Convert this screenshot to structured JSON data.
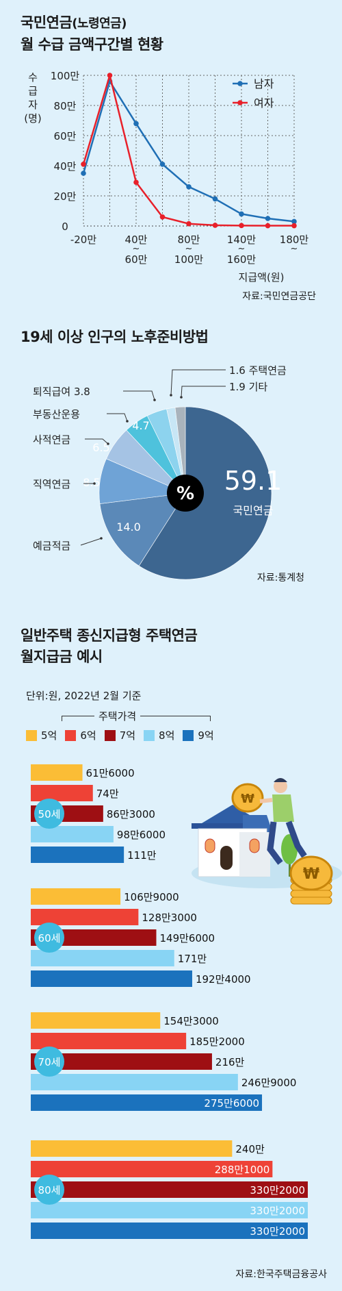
{
  "section1": {
    "title_line1_main": "국민연금",
    "title_line1_paren": "(노령연금)",
    "title_line2": "월 수급 금액구간별 현황",
    "source": "자료:국민연금공단"
  },
  "section2": {
    "title": "19세 이상 인구의 노후준비방법",
    "center_symbol": "%",
    "source": "자료:통계청"
  },
  "section3": {
    "title_line1": "일반주택 종신지급형 주택연금",
    "title_line2": "월지급금 예시",
    "unit_note": "단위:원, 2022년 2월 기준",
    "legend_title": "주택가격",
    "source": "자료:한국주택금융공사"
  },
  "colors": {
    "background": "#dff1fb",
    "male": "#1f6fb5",
    "female": "#e8202a",
    "pie": [
      "#3d6690",
      "#5b89b8",
      "#6fa3d6",
      "#a5c3e4",
      "#4ec2dc",
      "#8dd3ee",
      "#c8e6f5",
      "#a9b3bc"
    ],
    "bars": [
      "#fbbd36",
      "#ee4236",
      "#9e0f13",
      "#88d4f4",
      "#1b72bd"
    ]
  },
  "chart_data": [
    {
      "type": "line",
      "ylabel": "수급자(명)",
      "xlabel": "지급액(원)",
      "x_tick_labels": [
        "-20만",
        "40만~60만",
        "80만~100만",
        "140만~160만",
        "180만~"
      ],
      "y_tick_labels": [
        "0",
        "20만",
        "40만",
        "60만",
        "80만",
        "100만"
      ],
      "ylim": [
        0,
        1000000
      ],
      "grid": true,
      "legend_position": "top-right",
      "series": [
        {
          "name": "남자",
          "values": [
            350000,
            960000,
            680000,
            410000,
            260000,
            180000,
            80000,
            50000,
            30000
          ]
        },
        {
          "name": "여자",
          "values": [
            410000,
            1000000,
            290000,
            60000,
            15000,
            5000,
            3000,
            2000,
            2000
          ]
        }
      ]
    },
    {
      "type": "pie",
      "unit": "%",
      "slices": [
        {
          "label": "국민연금",
          "value": 59.1
        },
        {
          "label": "예금적금",
          "value": 14.0
        },
        {
          "label": "직역연금",
          "value": 8.5
        },
        {
          "label": "사적연금",
          "value": 6.5
        },
        {
          "label": "부동산운용",
          "value": 4.7
        },
        {
          "label": "퇴직급여",
          "value": 3.8
        },
        {
          "label": "주택연금",
          "value": 1.6
        },
        {
          "label": "기타",
          "value": 1.9
        }
      ],
      "value_labels": [
        "59.1",
        "14.0",
        "8.5",
        "6.5",
        "4.7",
        "",
        "",
        ""
      ],
      "outside_labels": [
        "",
        "예금적금",
        "직역연금",
        "사적연금",
        "부동산운용",
        "퇴직급여 3.8",
        "1.6 주택연금",
        "1.9 기타"
      ]
    },
    {
      "type": "bar",
      "orientation": "horizontal",
      "series_names": [
        "5억",
        "6억",
        "7억",
        "8억",
        "9억"
      ],
      "groups": [
        {
          "label": "50세",
          "values": [
            616000,
            740000,
            863000,
            986000,
            1110000
          ],
          "value_labels": [
            "61만6000",
            "74만",
            "86만3000",
            "98만6000",
            "111만"
          ]
        },
        {
          "label": "60세",
          "values": [
            1069000,
            1283000,
            1496000,
            1710000,
            1924000
          ],
          "value_labels": [
            "106만9000",
            "128만3000",
            "149만6000",
            "171만",
            "192만4000"
          ]
        },
        {
          "label": "70세",
          "values": [
            1543000,
            1852000,
            2160000,
            2469000,
            2756000
          ],
          "value_labels": [
            "154만3000",
            "185만2000",
            "216만",
            "246만9000",
            "275만6000"
          ]
        },
        {
          "label": "80세",
          "values": [
            2400000,
            2881000,
            3302000,
            3302000,
            3302000
          ],
          "value_labels": [
            "240만",
            "288만1000",
            "330만2000",
            "330만2000",
            "330만2000"
          ]
        }
      ]
    }
  ]
}
